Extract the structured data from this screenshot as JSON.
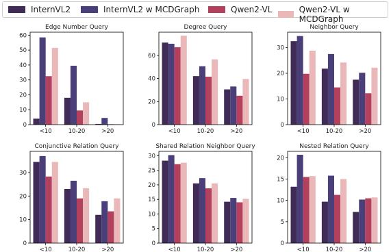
{
  "legend": {
    "series": [
      {
        "name": "InternVL2",
        "color": "#3f2b56"
      },
      {
        "name": "InternVL2 w MCDGraph",
        "color": "#4b3f7a"
      },
      {
        "name": "Qwen2-VL",
        "color": "#b3405c"
      },
      {
        "name": "Qwen2-VL w MCDGraph",
        "color": "#eab8b8"
      }
    ]
  },
  "chart_data": [
    {
      "type": "bar",
      "title": "Edge Number Query",
      "categories": [
        "<10",
        "10-20",
        ">20"
      ],
      "ylim": [
        0,
        62
      ],
      "yticks": [
        0,
        10,
        20,
        30,
        40,
        50,
        60
      ],
      "series": [
        {
          "name": "InternVL2",
          "values": [
            4,
            18,
            0.5
          ]
        },
        {
          "name": "InternVL2 w MCDGraph",
          "values": [
            58.5,
            39.5,
            4.5
          ]
        },
        {
          "name": "Qwen2-VL",
          "values": [
            32.5,
            9.5,
            0.3
          ]
        },
        {
          "name": "Qwen2-VL w MCDGraph",
          "values": [
            51.5,
            15,
            0.3
          ]
        }
      ]
    },
    {
      "type": "bar",
      "title": "Degree Query",
      "categories": [
        "<10",
        "10-20",
        ">20"
      ],
      "ylim": [
        0,
        80
      ],
      "yticks": [
        0,
        20,
        40,
        60
      ],
      "series": [
        {
          "name": "InternVL2",
          "values": [
            71,
            42,
            30.5
          ]
        },
        {
          "name": "InternVL2 w MCDGraph",
          "values": [
            70,
            50.5,
            33
          ]
        },
        {
          "name": "Qwen2-VL",
          "values": [
            67,
            41.5,
            25
          ]
        },
        {
          "name": "Qwen2-VL w MCDGraph",
          "values": [
            77,
            56.5,
            39.5
          ]
        }
      ]
    },
    {
      "type": "bar",
      "title": "Neighbor Query",
      "categories": [
        "<10",
        "10-20",
        ">20"
      ],
      "ylim": [
        0,
        36
      ],
      "yticks": [
        0,
        10,
        20,
        30
      ],
      "series": [
        {
          "name": "InternVL2",
          "values": [
            32.5,
            21.8,
            17.5
          ]
        },
        {
          "name": "InternVL2 w MCDGraph",
          "values": [
            34.5,
            27.5,
            20.2
          ]
        },
        {
          "name": "Qwen2-VL",
          "values": [
            19.8,
            14.5,
            12.2
          ]
        },
        {
          "name": "Qwen2-VL w MCDGraph",
          "values": [
            28.8,
            24.2,
            22.2
          ]
        }
      ]
    },
    {
      "type": "bar",
      "title": "Conjunctive Relation Query",
      "categories": [
        "<10",
        "10-20",
        ">20"
      ],
      "ylim": [
        0,
        39
      ],
      "yticks": [
        0,
        10,
        20,
        30
      ],
      "series": [
        {
          "name": "InternVL2",
          "values": [
            34.5,
            23,
            12
          ]
        },
        {
          "name": "InternVL2 w MCDGraph",
          "values": [
            37,
            26.5,
            17.8
          ]
        },
        {
          "name": "Qwen2-VL",
          "values": [
            28.3,
            19,
            13.5
          ]
        },
        {
          "name": "Qwen2-VL w MCDGraph",
          "values": [
            34.5,
            23.3,
            19
          ]
        }
      ]
    },
    {
      "type": "bar",
      "title": "Shared Relation Neighbor Query",
      "categories": [
        "<10",
        "10-20",
        ">20"
      ],
      "ylim": [
        0,
        31.5
      ],
      "yticks": [
        0,
        5,
        10,
        15,
        20,
        25,
        30
      ],
      "series": [
        {
          "name": "InternVL2",
          "values": [
            28.3,
            20.5,
            14.2
          ]
        },
        {
          "name": "InternVL2 w MCDGraph",
          "values": [
            30.2,
            22.3,
            15.5
          ]
        },
        {
          "name": "Qwen2-VL",
          "values": [
            27.1,
            18.8,
            14
          ]
        },
        {
          "name": "Qwen2-VL w MCDGraph",
          "values": [
            27.6,
            20.5,
            15.2
          ]
        }
      ]
    },
    {
      "type": "bar",
      "title": "Nested Relation Query",
      "categories": [
        "<10",
        "10-20",
        ">20"
      ],
      "ylim": [
        0,
        21.5
      ],
      "yticks": [
        0,
        5,
        10,
        15,
        20
      ],
      "series": [
        {
          "name": "InternVL2",
          "values": [
            13.2,
            9.7,
            7.3
          ]
        },
        {
          "name": "InternVL2 w MCDGraph",
          "values": [
            20.7,
            15.8,
            10.2
          ]
        },
        {
          "name": "Qwen2-VL",
          "values": [
            15.5,
            11.3,
            10.5
          ]
        },
        {
          "name": "Qwen2-VL w MCDGraph",
          "values": [
            15.7,
            15,
            10.7
          ]
        }
      ]
    }
  ]
}
